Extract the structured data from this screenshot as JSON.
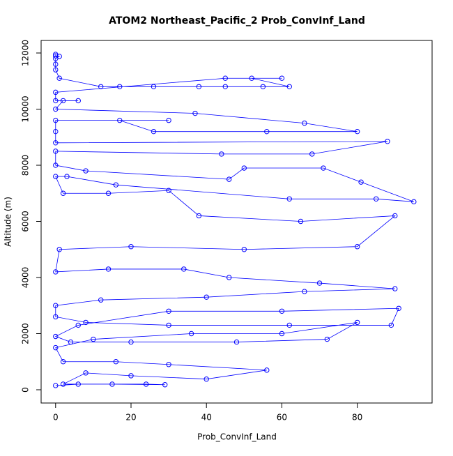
{
  "chart_data": {
    "type": "line",
    "title": "ATOM2 Northeast_Pacific_2 Prob_ConvInf_Land",
    "xlabel": "Prob_ConvInf_Land",
    "ylabel": "Altitude (m)",
    "xlim": [
      -3.84,
      99.84
    ],
    "ylim": [
      -472,
      12447
    ],
    "xticks": [
      0,
      20,
      40,
      60,
      80
    ],
    "yticks": [
      0,
      2000,
      4000,
      6000,
      8000,
      10000,
      12000
    ],
    "grid": false,
    "markers": true,
    "series": [
      {
        "color": "#0000ff",
        "x": [
          0,
          0,
          1,
          0,
          0,
          0,
          1,
          12,
          17,
          26,
          38,
          45,
          55,
          62,
          52,
          60,
          45,
          0,
          0,
          6,
          2,
          0,
          37,
          66,
          80,
          56,
          26,
          17,
          30,
          0,
          0,
          0,
          88,
          68,
          44,
          0,
          0,
          8,
          46,
          50,
          71,
          81,
          95,
          85,
          62,
          16,
          3,
          0,
          2,
          14,
          30,
          38,
          65,
          90,
          80,
          50,
          20,
          1,
          0,
          14,
          34,
          46,
          70,
          90,
          66,
          40,
          12,
          0,
          0,
          8,
          30,
          62,
          89,
          91,
          60,
          30,
          6,
          0,
          4,
          20,
          48,
          72,
          80,
          60,
          36,
          10,
          0,
          2,
          16,
          30,
          56,
          40,
          20,
          8,
          2,
          15,
          29,
          24,
          6,
          0
        ],
        "values": [
          11950,
          11900,
          11880,
          11800,
          11600,
          11400,
          11100,
          10800,
          10800,
          10800,
          10800,
          10800,
          10800,
          10800,
          11100,
          11100,
          11100,
          10600,
          10300,
          10300,
          10300,
          10000,
          9850,
          9500,
          9200,
          9200,
          9200,
          9600,
          9600,
          9600,
          9200,
          8800,
          8850,
          8400,
          8400,
          8500,
          8000,
          7800,
          7500,
          7900,
          7900,
          7400,
          6700,
          6800,
          6800,
          7300,
          7600,
          7600,
          7000,
          7000,
          7100,
          6200,
          6000,
          6200,
          5100,
          5000,
          5100,
          5000,
          4200,
          4300,
          4300,
          4000,
          3800,
          3600,
          3500,
          3300,
          3200,
          3000,
          2600,
          2400,
          2300,
          2300,
          2300,
          2900,
          2800,
          2800,
          2300,
          1900,
          1700,
          1700,
          1700,
          1800,
          2400,
          2000,
          2000,
          1800,
          1500,
          1000,
          1000,
          900,
          700,
          380,
          500,
          600,
          200,
          200,
          180,
          200,
          200,
          150
        ]
      }
    ]
  }
}
